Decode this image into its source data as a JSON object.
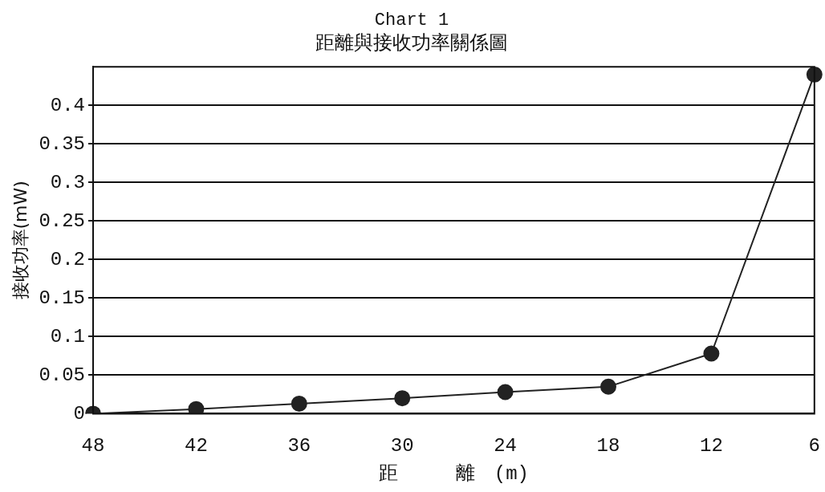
{
  "chart_data": {
    "type": "line",
    "title": "Chart 1",
    "subtitle": "距離與接收功率關係圖",
    "xlabel": "距　　　離　(m)",
    "ylabel": "接收功率(mW)",
    "categories": [
      "48",
      "42",
      "36",
      "30",
      "24",
      "18",
      "12",
      "6"
    ],
    "series": [
      {
        "color": "#222222",
        "values": [
          0,
          0.006,
          0.013,
          0.02,
          0.028,
          0.035,
          0.078,
          0.44
        ]
      }
    ],
    "ylim": [
      0,
      0.45
    ],
    "yticks": [
      0,
      0.05,
      0.1,
      0.15,
      0.2,
      0.25,
      0.3,
      0.35,
      0.4
    ],
    "grid": "y",
    "line_style": "solid",
    "marker": "circle",
    "legend": false
  }
}
